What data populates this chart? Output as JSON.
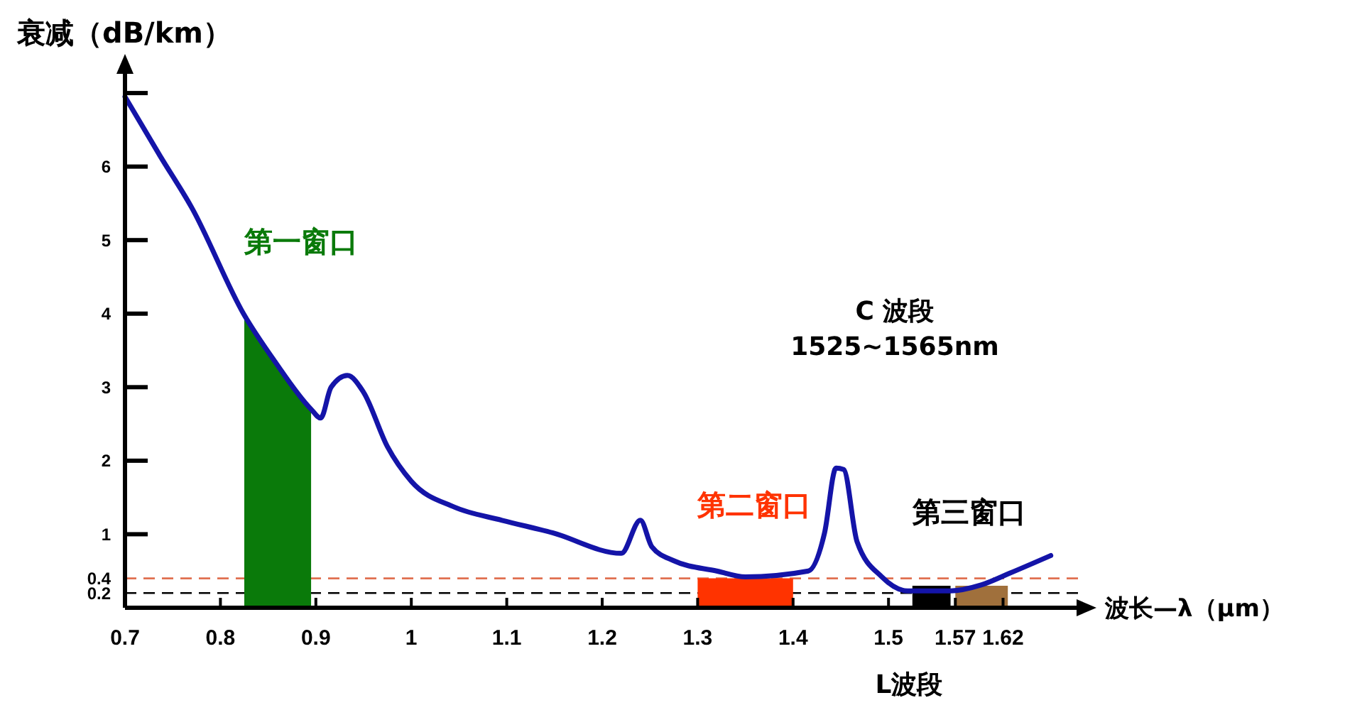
{
  "chart_data": {
    "type": "line",
    "xlabel": "波长—λ（μm）",
    "ylabel": "衰减（dB/km）",
    "xlim": [
      0.7,
      1.7
    ],
    "xticks": [
      0.7,
      0.8,
      0.9,
      1.0,
      1.1,
      1.2,
      1.3,
      1.4,
      1.5,
      1.57,
      1.62
    ],
    "ylim": [
      0,
      7.3
    ],
    "yticks": [
      0.2,
      0.4,
      1,
      2,
      3,
      4,
      5,
      6,
      {
        "value": 7,
        "label": null
      }
    ],
    "series": [
      {
        "type": "area",
        "name": "第一窗口",
        "color": "#0a7a0a",
        "x": [
          0.825,
          0.857,
          0.895
        ],
        "values": [
          3.98,
          3.35,
          2.7
        ]
      },
      {
        "type": "area",
        "name": "第二窗口",
        "color": "#ff3300",
        "x": [
          1.3,
          1.4
        ],
        "values": [
          0.4,
          0.4
        ]
      },
      {
        "type": "area",
        "name": "第三窗口",
        "color": "#000000",
        "x": [
          1.525,
          1.565
        ],
        "values": [
          0.3,
          0.3
        ]
      },
      {
        "type": "area",
        "color": "#a0703c",
        "x": [
          1.57,
          1.625
        ],
        "values": [
          0.3,
          0.3
        ]
      },
      {
        "color": "#1414a8",
        "x": [
          0.7,
          0.737,
          0.77,
          0.825,
          0.857,
          0.895,
          0.905,
          0.916,
          0.933,
          0.95,
          0.975,
          1.0,
          1.045,
          1.095,
          1.148,
          1.22,
          1.24,
          1.252,
          1.275,
          1.32,
          1.35,
          1.416,
          1.433,
          1.445,
          1.453,
          1.467,
          1.493,
          1.52,
          1.565,
          1.597,
          1.627,
          1.67
        ],
        "values": [
          6.95,
          6.14,
          5.44,
          3.98,
          3.35,
          2.7,
          2.58,
          3.0,
          3.16,
          2.93,
          2.19,
          1.72,
          1.37,
          1.19,
          1.02,
          0.74,
          1.19,
          0.83,
          0.64,
          0.5,
          0.42,
          0.5,
          1.02,
          1.9,
          1.88,
          0.9,
          0.42,
          0.23,
          0.23,
          0.31,
          0.47,
          0.71
        ]
      }
    ],
    "ref_lines": [
      {
        "axis": "y",
        "value": 0.4,
        "color": "#e07050",
        "line_style": "dashed"
      },
      {
        "axis": "y",
        "value": 0.2,
        "color": "#000000",
        "line_style": "dashed"
      }
    ],
    "annotations": [
      "C 波段\n1525~1565nm",
      "L波段"
    ]
  }
}
